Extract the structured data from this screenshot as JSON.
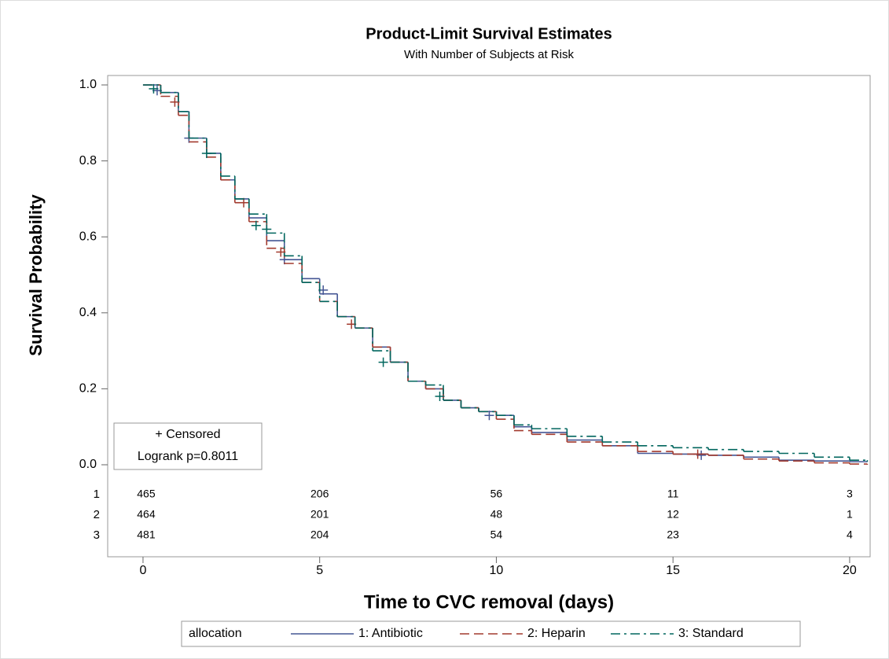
{
  "chart_data": {
    "type": "km",
    "title": "Product-Limit Survival Estimates",
    "subtitle": "With Number of Subjects at Risk",
    "x_label": "Time to CVC removal (days)",
    "y_label": "Survival Probability",
    "xlim": [
      -1,
      20.58
    ],
    "ylim": [
      0,
      1
    ],
    "xticks": [
      0,
      5,
      10,
      15,
      20
    ],
    "yticks": [
      {
        "value": 0,
        "label": "0.0"
      },
      {
        "value": 0.2,
        "label": "0.2"
      },
      {
        "value": 0.4,
        "label": "0.4"
      },
      {
        "value": 0.6,
        "label": "0.6"
      },
      {
        "value": 0.8,
        "label": "0.8"
      },
      {
        "value": 1,
        "label": "1.0"
      }
    ],
    "series": [
      {
        "name": "1: Antibiotic",
        "color": "#445694",
        "dash": "solid",
        "x": [
          0,
          0.5,
          1,
          1.3,
          1.8,
          2.2,
          2.6,
          3,
          3.5,
          4,
          4.5,
          5,
          5.5,
          6,
          6.5,
          7,
          7.5,
          8,
          8.5,
          9,
          9.5,
          10,
          10.5,
          11,
          12,
          13,
          14,
          15,
          16,
          17,
          18,
          19,
          20,
          20.5
        ],
        "values": [
          1,
          0.98,
          0.93,
          0.86,
          0.82,
          0.75,
          0.7,
          0.65,
          0.59,
          0.54,
          0.49,
          0.45,
          0.39,
          0.36,
          0.31,
          0.27,
          0.22,
          0.2,
          0.17,
          0.15,
          0.14,
          0.13,
          0.1,
          0.085,
          0.065,
          0.05,
          0.03,
          0.028,
          0.025,
          0.02,
          0.012,
          0.01,
          0.008,
          0.008
        ],
        "censored_x": [
          0.4,
          1.3,
          4,
          5.1,
          9.8,
          15.8
        ],
        "censored_y": [
          0.985,
          0.86,
          0.54,
          0.46,
          0.13,
          0.025
        ]
      },
      {
        "name": "2: Heparin",
        "color": "#a23a2e",
        "dash": "dashed",
        "x": [
          0,
          0.5,
          1,
          1.3,
          1.8,
          2.2,
          2.6,
          3,
          3.5,
          4,
          4.5,
          5,
          5.5,
          6,
          6.5,
          7,
          7.5,
          8,
          8.5,
          9,
          9.5,
          10,
          10.5,
          11,
          12,
          13,
          14,
          15,
          16,
          17,
          18,
          19,
          20,
          20.5
        ],
        "values": [
          1,
          0.97,
          0.92,
          0.85,
          0.81,
          0.75,
          0.69,
          0.64,
          0.57,
          0.53,
          0.48,
          0.43,
          0.39,
          0.36,
          0.31,
          0.27,
          0.22,
          0.2,
          0.17,
          0.15,
          0.14,
          0.12,
          0.09,
          0.08,
          0.06,
          0.05,
          0.035,
          0.028,
          0.025,
          0.015,
          0.01,
          0.005,
          0.002,
          0
        ],
        "censored_x": [
          0.9,
          2.85,
          3.9,
          5.9,
          15.7
        ],
        "censored_y": [
          0.955,
          0.69,
          0.56,
          0.37,
          0.028
        ]
      },
      {
        "name": "3: Standard",
        "color": "#01665e",
        "dash": "dashdot",
        "x": [
          0,
          0.5,
          1,
          1.3,
          1.8,
          2.2,
          2.6,
          3,
          3.5,
          4,
          4.5,
          5,
          5.5,
          6,
          6.5,
          7,
          7.5,
          8,
          8.5,
          9,
          9.5,
          10,
          10.5,
          11,
          12,
          13,
          14,
          15,
          16,
          17,
          18,
          19,
          20,
          20.5
        ],
        "values": [
          1,
          0.98,
          0.93,
          0.86,
          0.82,
          0.76,
          0.7,
          0.66,
          0.61,
          0.55,
          0.48,
          0.43,
          0.39,
          0.36,
          0.3,
          0.27,
          0.22,
          0.21,
          0.17,
          0.15,
          0.14,
          0.13,
          0.105,
          0.095,
          0.075,
          0.06,
          0.05,
          0.045,
          0.04,
          0.035,
          0.03,
          0.02,
          0.012,
          0.008
        ],
        "censored_x": [
          0.3,
          1.8,
          3.2,
          3.5,
          6.8,
          8.4
        ],
        "censored_y": [
          0.99,
          0.82,
          0.63,
          0.62,
          0.27,
          0.18
        ]
      }
    ],
    "inset": [
      "+ Censored",
      "Logrank p=0.8011"
    ],
    "legend_title": "allocation",
    "legend": "bottom",
    "at_risk": [
      {
        "label": "1",
        "counts": [
          465,
          206,
          56,
          11,
          3
        ]
      },
      {
        "label": "2",
        "counts": [
          464,
          201,
          48,
          12,
          1
        ]
      },
      {
        "label": "3",
        "counts": [
          481,
          204,
          54,
          23,
          4
        ]
      }
    ]
  }
}
